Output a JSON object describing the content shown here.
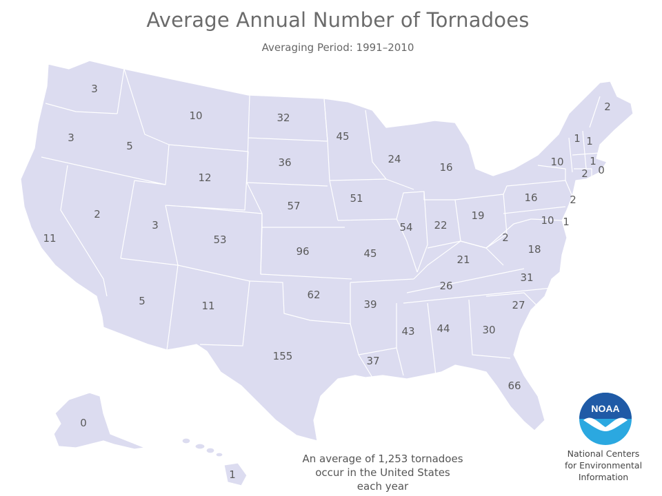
{
  "title": "Average Annual Number of Tornadoes",
  "subtitle": "Averaging Period:  1991–2010",
  "summary": [
    "An average of 1,253 tornadoes",
    "occur in the United States",
    "each year"
  ],
  "agency": [
    "National Centers",
    "for Environmental",
    "Information"
  ],
  "logo_text": "NOAA",
  "colors": {
    "land": "#dcdcf0",
    "borders": "#ffffff",
    "logo_blue": "#1f5aa6",
    "logo_cyan": "#2ba8e0",
    "text": "#5a5a5a"
  },
  "states": [
    {
      "id": "WA",
      "value": "3"
    },
    {
      "id": "OR",
      "value": "3"
    },
    {
      "id": "CA",
      "value": "11"
    },
    {
      "id": "ID",
      "value": "5"
    },
    {
      "id": "NV",
      "value": "2"
    },
    {
      "id": "MT",
      "value": "10"
    },
    {
      "id": "WY",
      "value": "12"
    },
    {
      "id": "UT",
      "value": "3"
    },
    {
      "id": "AZ",
      "value": "5"
    },
    {
      "id": "CO",
      "value": "53"
    },
    {
      "id": "NM",
      "value": "11"
    },
    {
      "id": "ND",
      "value": "32"
    },
    {
      "id": "SD",
      "value": "36"
    },
    {
      "id": "NE",
      "value": "57"
    },
    {
      "id": "KS",
      "value": "96"
    },
    {
      "id": "OK",
      "value": "62"
    },
    {
      "id": "TX",
      "value": "155"
    },
    {
      "id": "MN",
      "value": "45"
    },
    {
      "id": "IA",
      "value": "51"
    },
    {
      "id": "MO",
      "value": "45"
    },
    {
      "id": "AR",
      "value": "39"
    },
    {
      "id": "LA",
      "value": "37"
    },
    {
      "id": "WI",
      "value": "24"
    },
    {
      "id": "IL",
      "value": "54"
    },
    {
      "id": "MI",
      "value": "16"
    },
    {
      "id": "IN",
      "value": "22"
    },
    {
      "id": "OH",
      "value": "19"
    },
    {
      "id": "KY",
      "value": "21"
    },
    {
      "id": "TN",
      "value": "26"
    },
    {
      "id": "MS",
      "value": "43"
    },
    {
      "id": "AL",
      "value": "44"
    },
    {
      "id": "GA",
      "value": "30"
    },
    {
      "id": "FL",
      "value": "66"
    },
    {
      "id": "SC",
      "value": "27"
    },
    {
      "id": "NC",
      "value": "31"
    },
    {
      "id": "VA",
      "value": "18"
    },
    {
      "id": "WV",
      "value": "2"
    },
    {
      "id": "MD",
      "value": "10"
    },
    {
      "id": "DE",
      "value": "1"
    },
    {
      "id": "PA",
      "value": "16"
    },
    {
      "id": "NJ",
      "value": "2"
    },
    {
      "id": "NY",
      "value": "10"
    },
    {
      "id": "CT",
      "value": "2"
    },
    {
      "id": "RI",
      "value": "0"
    },
    {
      "id": "MA",
      "value": "1"
    },
    {
      "id": "VT",
      "value": "1"
    },
    {
      "id": "NH",
      "value": "1"
    },
    {
      "id": "ME",
      "value": "2"
    },
    {
      "id": "AK",
      "value": "0"
    },
    {
      "id": "HI",
      "value": "1"
    }
  ]
}
